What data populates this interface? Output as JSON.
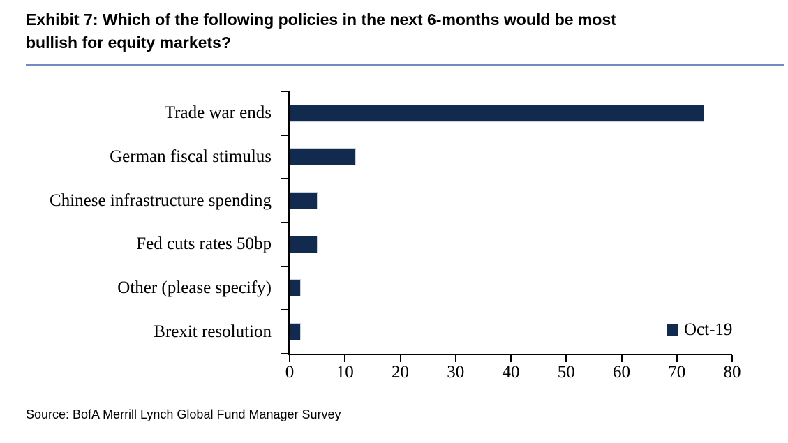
{
  "title": {
    "line1": "Exhibit 7: Which of the following policies in the next 6-months would be most",
    "line2": "bullish for equity markets?"
  },
  "legend": {
    "label": "Oct-19"
  },
  "source": {
    "text": "Source: BofA Merrill Lynch Global Fund Manager Survey"
  },
  "colors": {
    "bar": "#132a4f",
    "bar_edge": "#c9d2df",
    "axis": "#000000",
    "title_rule": "#6d8cbf",
    "text": "#000000"
  },
  "chart_data": {
    "type": "bar",
    "orientation": "horizontal",
    "title": "Exhibit 7: Which of the following policies in the next 6-months would be most bullish for equity markets?",
    "categories": [
      "Trade war ends",
      "German fiscal stimulus",
      "Chinese infrastructure spending",
      "Fed cuts rates 50bp",
      "Other (please specify)",
      "Brexit resolution"
    ],
    "series": [
      {
        "name": "Oct-19",
        "values": [
          75,
          12,
          5,
          5,
          2,
          2
        ],
        "color": "#132a4f"
      }
    ],
    "xlabel": "",
    "ylabel": "",
    "xlim": [
      0,
      80
    ],
    "x_ticks": [
      0,
      10,
      20,
      30,
      40,
      50,
      60,
      70,
      80
    ],
    "grid": false,
    "legend_position": "inside-bottom-right",
    "source": "Source: BofA Merrill Lynch Global Fund Manager Survey"
  }
}
